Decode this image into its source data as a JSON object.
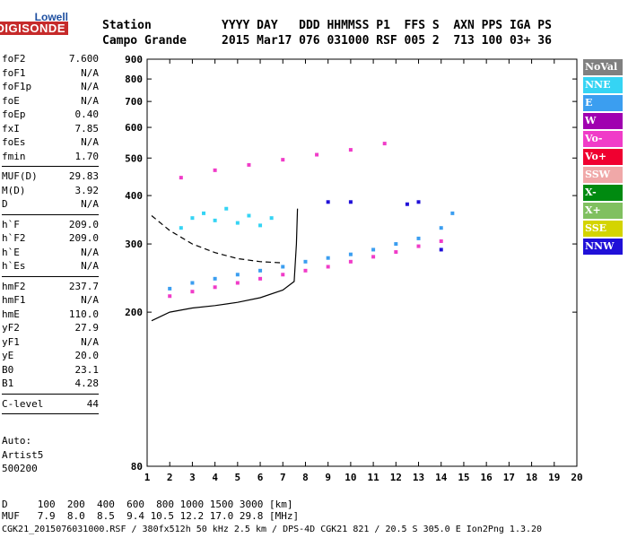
{
  "logo": {
    "top": "Lowell",
    "main": "DIGISONDE"
  },
  "header": {
    "line1": "Station          YYYY DAY   DDD HHMMSS P1  FFS S  AXN PPS IGA PS",
    "line2": "Campo Grande     2015 Mar17 076 031000 RSF 005 2  713 100 03+ 36"
  },
  "params_group1": [
    {
      "name": "foF2",
      "value": "7.600"
    },
    {
      "name": "foF1",
      "value": "N/A"
    },
    {
      "name": "foF1p",
      "value": "N/A"
    },
    {
      "name": "foE",
      "value": "N/A"
    },
    {
      "name": "foEp",
      "value": "0.40"
    },
    {
      "name": "fxI",
      "value": "7.85"
    },
    {
      "name": "foEs",
      "value": "N/A"
    },
    {
      "name": "fmin",
      "value": "1.70"
    }
  ],
  "params_group2": [
    {
      "name": "MUF(D)",
      "value": "29.83"
    },
    {
      "name": "M(D)",
      "value": "3.92"
    },
    {
      "name": "D",
      "value": "N/A"
    }
  ],
  "params_group3": [
    {
      "name": "h`F",
      "value": "209.0"
    },
    {
      "name": "h`F2",
      "value": "209.0"
    },
    {
      "name": "h`E",
      "value": "N/A"
    },
    {
      "name": "h`Es",
      "value": "N/A"
    }
  ],
  "params_group4": [
    {
      "name": "hmF2",
      "value": "237.7"
    },
    {
      "name": "hmF1",
      "value": "N/A"
    },
    {
      "name": "hmE",
      "value": "110.0"
    },
    {
      "name": "yF2",
      "value": "27.9"
    },
    {
      "name": "yF1",
      "value": "N/A"
    },
    {
      "name": "yE",
      "value": "20.0"
    },
    {
      "name": "B0",
      "value": "23.1"
    },
    {
      "name": "B1",
      "value": "4.28"
    }
  ],
  "params_group5": [
    {
      "name": "C-level",
      "value": "44"
    }
  ],
  "auto": {
    "line1": "Auto:",
    "line2": "Artist5",
    "line3": "500200"
  },
  "dtable": {
    "line1": "D     100  200  400  600  800 1000 1500 3000 [km]",
    "line2": "MUF   7.9  8.0  8.5  9.4 10.5 12.2 17.0 29.8 [MHz]"
  },
  "bottom": "CGK21_2015076031000.RSF / 380fx512h 50 kHz 2.5 km / DPS-4D CGK21 821 / 20.5 S 305.0 E Ion2Png 1.3.20",
  "legend": [
    {
      "label": "NoVal",
      "color": "#808080"
    },
    {
      "label": "NNE",
      "color": "#35d4f4"
    },
    {
      "label": "E",
      "color": "#3b9ef0"
    },
    {
      "label": "W",
      "color": "#a000b0"
    },
    {
      "label": "Vo-",
      "color": "#f03cc8"
    },
    {
      "label": "Vo+",
      "color": "#f00030"
    },
    {
      "label": "SSW",
      "color": "#f0a8a8"
    },
    {
      "label": "X-",
      "color": "#008a10"
    },
    {
      "label": "X+",
      "color": "#80c060"
    },
    {
      "label": "SSE",
      "color": "#d4d400"
    },
    {
      "label": "NNW",
      "color": "#2010d8"
    }
  ],
  "chart_data": {
    "type": "scatter",
    "title": "",
    "xlabel": "",
    "ylabel": "",
    "xlim": [
      1,
      20
    ],
    "ylim": [
      80,
      900
    ],
    "yscale": "log",
    "xticks": [
      1,
      2,
      3,
      4,
      5,
      6,
      7,
      8,
      9,
      10,
      11,
      12,
      13,
      14,
      15,
      16,
      17,
      18,
      19,
      20
    ],
    "yticks": [
      80,
      200,
      300,
      400,
      500,
      600,
      700,
      800,
      900
    ],
    "series": [
      {
        "color": "#3b9ef0",
        "x": [
          2.0,
          3.0,
          4.0,
          5.0,
          6.0,
          7.0,
          8.0,
          9.0,
          10.0,
          11.0,
          12.0,
          13.0,
          14.0,
          14.5
        ],
        "y": [
          230,
          238,
          244,
          250,
          256,
          262,
          270,
          276,
          282,
          290,
          300,
          310,
          330,
          360
        ]
      },
      {
        "color": "#f03cc8",
        "x": [
          2.0,
          3.0,
          4.0,
          5.0,
          6.0,
          7.0,
          8.0,
          9.0,
          10.0,
          11.0,
          12.0,
          13.0,
          14.0
        ],
        "y": [
          220,
          226,
          232,
          238,
          244,
          250,
          256,
          262,
          270,
          278,
          286,
          296,
          305
        ]
      },
      {
        "color": "#35d4f4",
        "x": [
          2.5,
          3.0,
          3.5,
          4.0,
          4.5,
          5.0,
          5.5,
          6.0,
          6.5
        ],
        "y": [
          330,
          350,
          360,
          345,
          370,
          340,
          355,
          335,
          350
        ]
      },
      {
        "color": "#f03cc8",
        "x": [
          2.5,
          4.0,
          5.5,
          7.0,
          8.5,
          10.0,
          11.5
        ],
        "y": [
          445,
          465,
          480,
          495,
          510,
          525,
          545
        ]
      },
      {
        "color": "#2010d8",
        "x": [
          9.0,
          10.0,
          12.5,
          13.0,
          14.0
        ],
        "y": [
          385,
          385,
          380,
          385,
          290
        ]
      }
    ],
    "traces": [
      {
        "style": "solid",
        "x": [
          1.2,
          2.0,
          3.0,
          4.0,
          5.0,
          6.0,
          7.0,
          7.5,
          7.6,
          7.65
        ],
        "y": [
          190,
          200,
          205,
          208,
          212,
          218,
          228,
          240,
          300,
          370
        ]
      },
      {
        "style": "dashed",
        "x": [
          1.2,
          2.0,
          3.0,
          4.0,
          5.0,
          6.0,
          7.0
        ],
        "y": [
          355,
          325,
          300,
          285,
          275,
          270,
          268
        ]
      }
    ]
  }
}
